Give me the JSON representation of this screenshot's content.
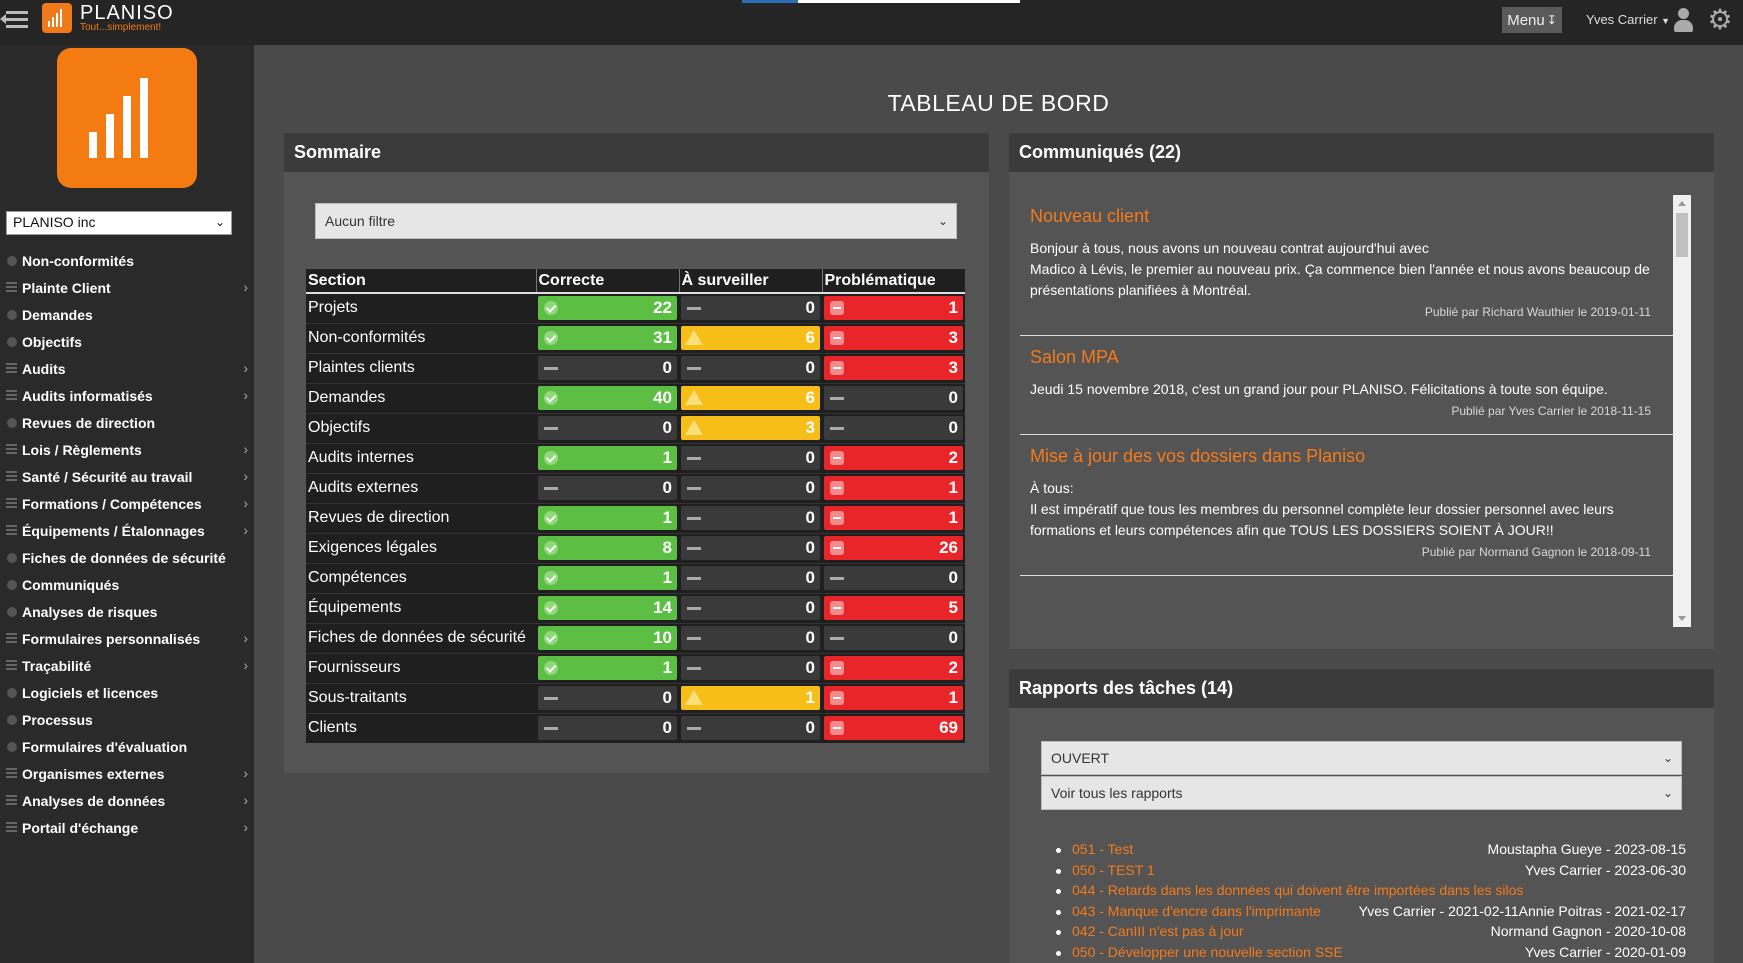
{
  "header": {
    "brand_name": "PLANISO",
    "brand_tagline": "Tout...simplement!",
    "menu_label": "Menu",
    "user_name": "Yves Carrier"
  },
  "sidebar": {
    "org_selected": "PLANISO inc",
    "items": [
      {
        "label": "Non-conformités",
        "icon": "dot-icon",
        "submenu": false
      },
      {
        "label": "Plainte Client",
        "icon": "list-icon",
        "submenu": true
      },
      {
        "label": "Demandes",
        "icon": "dot-icon",
        "submenu": false
      },
      {
        "label": "Objectifs",
        "icon": "dot-icon",
        "submenu": false
      },
      {
        "label": "Audits",
        "icon": "list-icon",
        "submenu": true
      },
      {
        "label": "Audits informatisés",
        "icon": "list-icon",
        "submenu": true
      },
      {
        "label": "Revues de direction",
        "icon": "dot-icon",
        "submenu": false
      },
      {
        "label": "Lois / Règlements",
        "icon": "list-icon",
        "submenu": true
      },
      {
        "label": "Santé / Sécurité au travail",
        "icon": "list-icon",
        "submenu": true
      },
      {
        "label": "Formations / Compétences",
        "icon": "list-icon",
        "submenu": true
      },
      {
        "label": "Équipements / Étalonnages",
        "icon": "list-icon",
        "submenu": true
      },
      {
        "label": "Fiches de données de sécurité",
        "icon": "dot-icon",
        "submenu": false
      },
      {
        "label": "Communiqués",
        "icon": "dot-icon",
        "submenu": false
      },
      {
        "label": "Analyses de risques",
        "icon": "dot-icon",
        "submenu": false
      },
      {
        "label": "Formulaires personnalisés",
        "icon": "list-icon",
        "submenu": true
      },
      {
        "label": "Traçabilité",
        "icon": "list-icon",
        "submenu": true
      },
      {
        "label": "Logiciels et licences",
        "icon": "dot-icon",
        "submenu": false
      },
      {
        "label": "Processus",
        "icon": "dot-icon",
        "submenu": false
      },
      {
        "label": "Formulaires d'évaluation",
        "icon": "dot-icon",
        "submenu": false
      },
      {
        "label": "Organismes externes",
        "icon": "list-icon",
        "submenu": true
      },
      {
        "label": "Analyses de données",
        "icon": "list-icon",
        "submenu": true
      },
      {
        "label": "Portail d'échange",
        "icon": "list-icon",
        "submenu": true
      }
    ]
  },
  "page_title": "TABLEAU DE BORD",
  "summary": {
    "title": "Sommaire",
    "filter": "Aucun filtre",
    "columns": [
      "Section",
      "Correcte",
      "À surveiller",
      "Problématique"
    ],
    "rows": [
      {
        "section": "Projets",
        "ok": 22,
        "watch": 0,
        "problem": 1
      },
      {
        "section": "Non-conformités",
        "ok": 31,
        "watch": 6,
        "problem": 3
      },
      {
        "section": "Plaintes clients",
        "ok": 0,
        "watch": 0,
        "problem": 3
      },
      {
        "section": "Demandes",
        "ok": 40,
        "watch": 6,
        "problem": 0
      },
      {
        "section": "Objectifs",
        "ok": 0,
        "watch": 3,
        "problem": 0
      },
      {
        "section": "Audits internes",
        "ok": 1,
        "watch": 0,
        "problem": 2
      },
      {
        "section": "Audits externes",
        "ok": 0,
        "watch": 0,
        "problem": 1
      },
      {
        "section": "Revues de direction",
        "ok": 1,
        "watch": 0,
        "problem": 1
      },
      {
        "section": "Exigences légales",
        "ok": 8,
        "watch": 0,
        "problem": 26
      },
      {
        "section": "Compétences",
        "ok": 1,
        "watch": 0,
        "problem": 0
      },
      {
        "section": "Équipements",
        "ok": 14,
        "watch": 0,
        "problem": 5
      },
      {
        "section": "Fiches de données de sécurité",
        "ok": 10,
        "watch": 0,
        "problem": 0
      },
      {
        "section": "Fournisseurs",
        "ok": 1,
        "watch": 0,
        "problem": 2
      },
      {
        "section": "Sous-traitants",
        "ok": 0,
        "watch": 1,
        "problem": 1
      },
      {
        "section": "Clients",
        "ok": 0,
        "watch": 0,
        "problem": 69
      }
    ],
    "colors": {
      "ok": "#5cbe43",
      "watch": "#f7bd18",
      "problem": "#e8262a",
      "zero": "#3a3a3a"
    }
  },
  "news": {
    "title": "Communiqués (22)",
    "items": [
      {
        "title": "Nouveau client",
        "body": [
          "Bonjour à tous, nous avons un nouveau contrat aujourd'hui avec",
          "Madico à Lévis, le premier au nouveau prix. Ça commence bien l'année et nous avons beaucoup de présentations planifiées à Montréal."
        ],
        "meta": "Publié par Richard Wauthier le 2019-01-11"
      },
      {
        "title": "Salon MPA",
        "body": [
          "Jeudi 15 novembre 2018, c'est un grand jour pour PLANISO. Félicitations à toute son équipe."
        ],
        "meta": "Publié par Yves Carrier le 2018-11-15"
      },
      {
        "title": "Mise à jour des vos dossiers dans Planiso",
        "body": [
          "À tous:",
          "Il est impératif que tous les membres du personnel complète leur dossier personnel avec leurs formations et leurs compétences afin que TOUS LES DOSSIERS SOIENT À JOUR!!"
        ],
        "meta": "Publié par Normand Gagnon le 2018-09-11"
      }
    ]
  },
  "reports": {
    "title": "Rapports des tâches (14)",
    "status_filter": "OUVERT",
    "view_filter": "Voir tous les rapports",
    "items": [
      {
        "label": "051 - Test",
        "info": "Moustapha Gueye - 2023-08-15"
      },
      {
        "label": "050 - TEST 1",
        "info": "Yves Carrier - 2023-06-30"
      },
      {
        "label": "044 - Retards dans les données qui doivent être importées dans les silos",
        "info": ""
      },
      {
        "label": "043 - Manque d'encre dans l'imprimante",
        "info": "Yves Carrier - 2021-02-11Annie Poitras - 2021-02-17"
      },
      {
        "label": "042 - CanIII n'est pas à jour",
        "info": "Normand Gagnon - 2020-10-08"
      },
      {
        "label": "050 - Développer une nouvelle section SSE",
        "info": "Yves Carrier - 2020-01-09"
      }
    ]
  }
}
